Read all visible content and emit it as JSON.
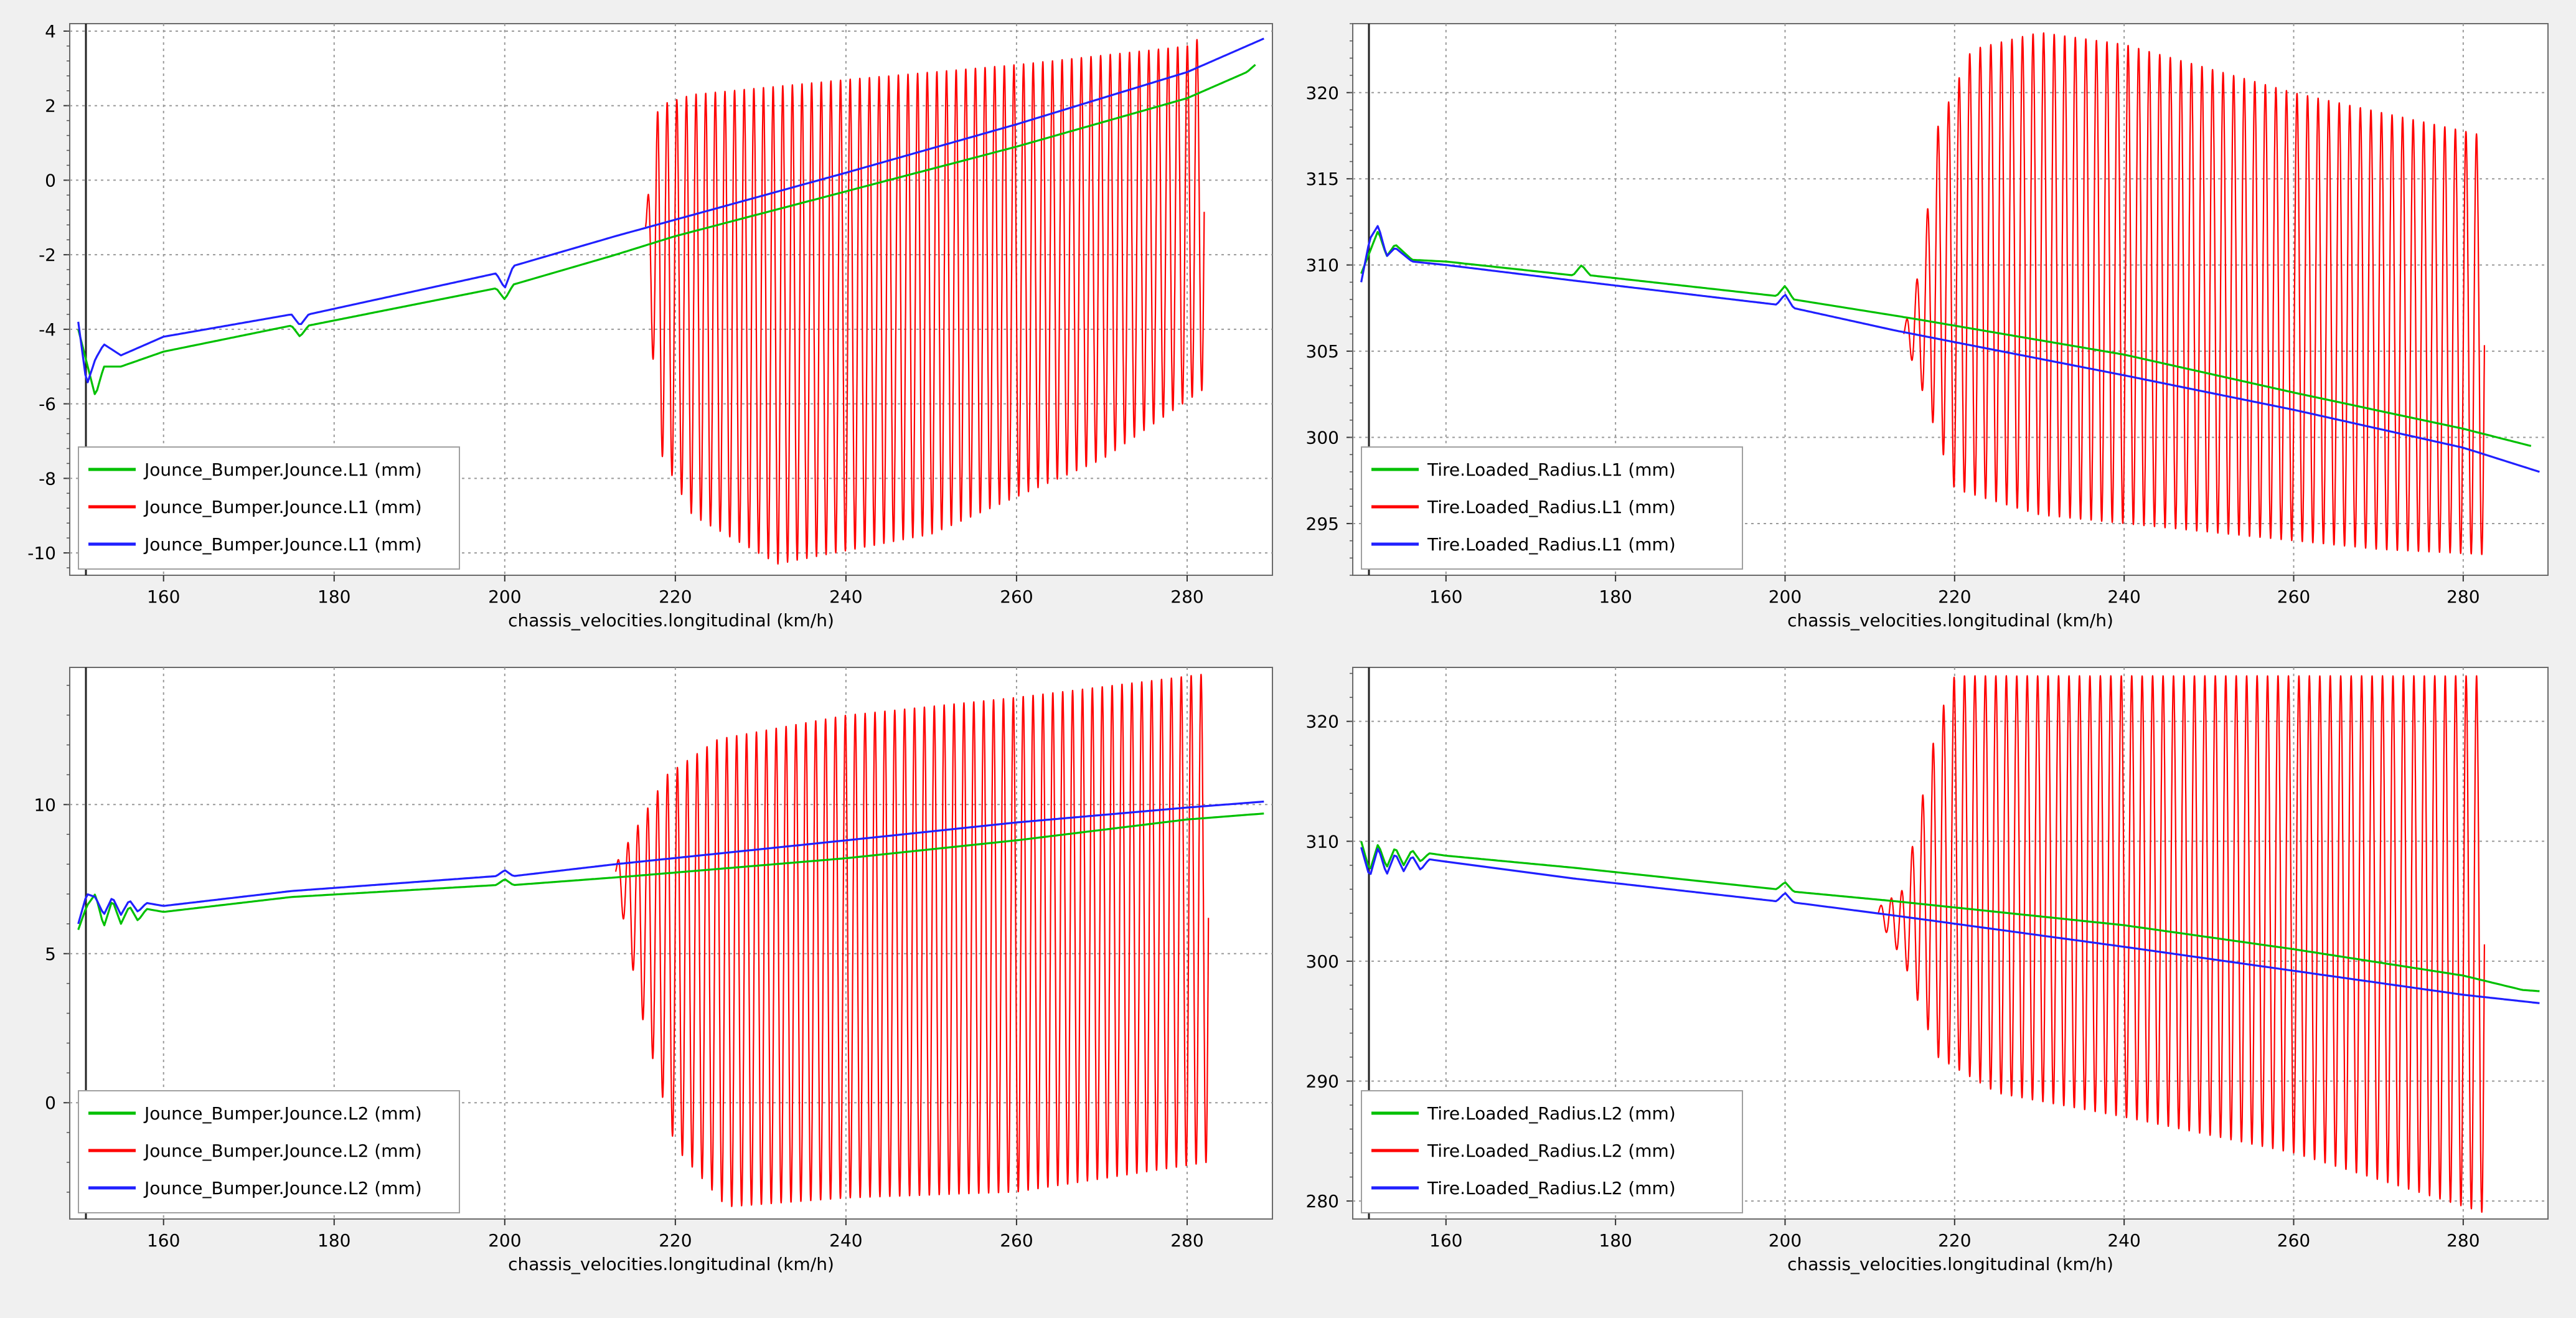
{
  "chart_data": [
    {
      "type": "line",
      "xlabel": "chassis_velocities.longitudinal (km/h)",
      "xlim": [
        149,
        290
      ],
      "xticks": [
        160,
        180,
        200,
        220,
        240,
        260,
        280
      ],
      "ylim": [
        -10.6,
        4.2
      ],
      "yticks": [
        4,
        2,
        0,
        -2,
        -4,
        -6,
        -8,
        -10
      ],
      "legend_position": "bottom-left",
      "series": [
        {
          "name": "Jounce_Bumper.Jounce.L1 (mm)",
          "color": "#00c000",
          "kind": "smooth",
          "x": [
            150,
            152,
            153,
            155,
            160,
            175,
            176,
            177,
            199,
            200,
            201,
            213,
            220,
            240,
            260,
            280,
            287,
            288
          ],
          "y": [
            -4.0,
            -5.8,
            -5.0,
            -5.0,
            -4.6,
            -3.9,
            -4.2,
            -3.9,
            -2.9,
            -3.2,
            -2.8,
            -2.0,
            -1.5,
            -0.3,
            0.9,
            2.2,
            2.9,
            3.1
          ]
        },
        {
          "name": "Jounce_Bumper.Jounce.L1 (mm)",
          "color": "#ff0000",
          "kind": "oscillation",
          "x_start": 216.5,
          "x_end": 282,
          "cycles": 58,
          "upper_x": [
            216.5,
            218,
            222,
            240,
            260,
            280,
            282
          ],
          "upper_y": [
            -1.0,
            2.0,
            2.3,
            2.7,
            3.1,
            3.6,
            3.9
          ],
          "lower_x": [
            216.5,
            218,
            222,
            232,
            250,
            270,
            282
          ],
          "lower_y": [
            -1.5,
            -7.2,
            -9.0,
            -10.3,
            -9.5,
            -7.5,
            -5.6
          ]
        },
        {
          "name": "Jounce_Bumper.Jounce.L1 (mm)",
          "color": "#2020ff",
          "kind": "smooth",
          "x": [
            150,
            151,
            152,
            153,
            155,
            160,
            175,
            176,
            177,
            199,
            200,
            201,
            213,
            240,
            260,
            280,
            289
          ],
          "y": [
            -3.8,
            -5.5,
            -4.8,
            -4.4,
            -4.7,
            -4.2,
            -3.6,
            -3.9,
            -3.6,
            -2.5,
            -2.9,
            -2.3,
            -1.5,
            0.2,
            1.5,
            2.9,
            3.8
          ]
        }
      ],
      "legend": [
        "Jounce_Bumper.Jounce.L1 (mm)",
        "Jounce_Bumper.Jounce.L1 (mm)",
        "Jounce_Bumper.Jounce.L1 (mm)"
      ]
    },
    {
      "type": "line",
      "xlabel": "chassis_velocities.longitudinal (km/h)",
      "xlim": [
        149,
        290
      ],
      "xticks": [
        160,
        180,
        200,
        220,
        240,
        260,
        280
      ],
      "ylim": [
        292,
        324
      ],
      "yticks": [
        320,
        315,
        310,
        305,
        300,
        295
      ],
      "legend_position": "bottom-left",
      "series": [
        {
          "name": "Tire.Loaded_Radius.L1 (mm)",
          "color": "#00c000",
          "kind": "smooth",
          "x": [
            150,
            152,
            153,
            154,
            156,
            160,
            175,
            176,
            177,
            199,
            200,
            201,
            215,
            240,
            260,
            280,
            288
          ],
          "y": [
            309.5,
            312.0,
            310.5,
            311.2,
            310.3,
            310.2,
            309.4,
            310.0,
            309.4,
            308.2,
            308.8,
            308.0,
            306.9,
            304.8,
            302.6,
            300.5,
            299.5
          ]
        },
        {
          "name": "Tire.Loaded_Radius.L1 (mm)",
          "color": "#ff0000",
          "kind": "oscillation",
          "x_start": 214,
          "x_end": 282.5,
          "cycles": 55,
          "upper_x": [
            214,
            216,
            218,
            222,
            230,
            240,
            260,
            282.5
          ],
          "upper_y": [
            306.2,
            310,
            318,
            322.5,
            323.5,
            322.8,
            320,
            317.5
          ],
          "lower_x": [
            214,
            216,
            220,
            230,
            250,
            270,
            282.5
          ],
          "lower_y": [
            305.8,
            303,
            297,
            295.5,
            294.5,
            293.5,
            293.2
          ]
        },
        {
          "name": "Tire.Loaded_Radius.L1 (mm)",
          "color": "#2020ff",
          "kind": "smooth",
          "x": [
            150,
            151,
            152,
            153,
            154,
            156,
            160,
            175,
            199,
            200,
            201,
            213,
            240,
            260,
            280,
            289
          ],
          "y": [
            309.0,
            311.5,
            312.3,
            310.5,
            311.0,
            310.2,
            310.0,
            309.1,
            307.7,
            308.3,
            307.5,
            306.2,
            303.6,
            301.6,
            299.4,
            298.0
          ]
        }
      ],
      "legend": [
        "Tire.Loaded_Radius.L1 (mm)",
        "Tire.Loaded_Radius.L1 (mm)",
        "Tire.Loaded_Radius.L1 (mm)"
      ]
    },
    {
      "type": "line",
      "xlabel": "chassis_velocities.longitudinal (km/h)",
      "xlim": [
        149,
        290
      ],
      "xticks": [
        160,
        180,
        200,
        220,
        240,
        260,
        280
      ],
      "ylim": [
        -3.9,
        14.6
      ],
      "yticks": [
        10,
        5,
        0
      ],
      "legend_position": "bottom-left",
      "series": [
        {
          "name": "Jounce_Bumper.Jounce.L2 (mm)",
          "color": "#00c000",
          "kind": "smooth",
          "x": [
            150,
            151,
            152,
            153,
            154,
            155,
            156,
            157,
            158,
            160,
            175,
            199,
            200,
            201,
            215,
            240,
            260,
            280,
            289
          ],
          "y": [
            5.8,
            6.6,
            7.0,
            5.9,
            6.8,
            6.0,
            6.6,
            6.1,
            6.5,
            6.4,
            6.9,
            7.3,
            7.5,
            7.3,
            7.6,
            8.2,
            8.8,
            9.5,
            9.7
          ]
        },
        {
          "name": "Jounce_Bumper.Jounce.L2 (mm)",
          "color": "#ff0000",
          "kind": "oscillation",
          "x_start": 213,
          "x_end": 282.5,
          "cycles": 60,
          "upper_x": [
            213,
            216,
            219,
            225,
            240,
            260,
            282.5
          ],
          "upper_y": [
            8.0,
            9.5,
            11.0,
            12.2,
            13.0,
            13.6,
            14.4
          ],
          "lower_x": [
            213,
            216,
            220,
            226,
            240,
            260,
            282.5
          ],
          "lower_y": [
            7.5,
            3.0,
            -1.5,
            -3.5,
            -3.2,
            -3.0,
            -2.0
          ]
        },
        {
          "name": "Jounce_Bumper.Jounce.L2 (mm)",
          "color": "#2020ff",
          "kind": "smooth",
          "x": [
            150,
            151,
            152,
            153,
            154,
            155,
            156,
            157,
            158,
            160,
            175,
            199,
            200,
            201,
            213,
            240,
            260,
            280,
            289
          ],
          "y": [
            6.0,
            7.0,
            6.9,
            6.3,
            6.9,
            6.3,
            6.8,
            6.4,
            6.7,
            6.6,
            7.1,
            7.6,
            7.8,
            7.6,
            8.0,
            8.8,
            9.4,
            9.9,
            10.1
          ]
        }
      ],
      "legend": [
        "Jounce_Bumper.Jounce.L2 (mm)",
        "Jounce_Bumper.Jounce.L2 (mm)",
        "Jounce_Bumper.Jounce.L2 (mm)"
      ]
    },
    {
      "type": "line",
      "xlabel": "chassis_velocities.longitudinal (km/h)",
      "xlim": [
        149,
        290
      ],
      "xticks": [
        160,
        180,
        200,
        220,
        240,
        260,
        280
      ],
      "ylim": [
        278.5,
        324.5
      ],
      "yticks": [
        320,
        310,
        300,
        290,
        280
      ],
      "legend_position": "bottom-left",
      "series": [
        {
          "name": "Tire.Loaded_Radius.L2 (mm)",
          "color": "#00c000",
          "kind": "smooth",
          "x": [
            150,
            151,
            152,
            153,
            154,
            155,
            156,
            157,
            158,
            160,
            175,
            199,
            200,
            201,
            213,
            240,
            260,
            280,
            287,
            289
          ],
          "y": [
            310.0,
            307.5,
            309.8,
            307.8,
            309.5,
            308.0,
            309.3,
            308.3,
            309.0,
            308.8,
            307.8,
            306.0,
            306.6,
            305.8,
            305.0,
            303.0,
            301.0,
            298.8,
            297.6,
            297.5
          ]
        },
        {
          "name": "Tire.Loaded_Radius.L2 (mm)",
          "color": "#ff0000",
          "kind": "oscillation",
          "x_start": 211,
          "x_end": 282.5,
          "cycles": 58,
          "upper_x": [
            211,
            214,
            216,
            218,
            220,
            240,
            260,
            282.5
          ],
          "upper_y": [
            304.5,
            306,
            313,
            320,
            323.8,
            323.8,
            323.8,
            323.8
          ],
          "lower_x": [
            211,
            214,
            218,
            225,
            240,
            260,
            282.5
          ],
          "lower_y": [
            303.5,
            300,
            292,
            289,
            287,
            284,
            279
          ]
        },
        {
          "name": "Tire.Loaded_Radius.L2 (mm)",
          "color": "#2020ff",
          "kind": "smooth",
          "x": [
            150,
            151,
            152,
            153,
            154,
            155,
            156,
            157,
            158,
            160,
            175,
            199,
            200,
            201,
            213,
            240,
            260,
            280,
            289
          ],
          "y": [
            309.5,
            307.0,
            309.5,
            307.2,
            309.0,
            307.5,
            308.8,
            307.6,
            308.5,
            308.3,
            306.9,
            305.0,
            305.7,
            304.9,
            303.8,
            301.2,
            299.2,
            297.2,
            296.5
          ]
        }
      ],
      "legend": [
        "Tire.Loaded_Radius.L2 (mm)",
        "Tire.Loaded_Radius.L2 (mm)",
        "Tire.Loaded_Radius.L2 (mm)"
      ]
    }
  ]
}
